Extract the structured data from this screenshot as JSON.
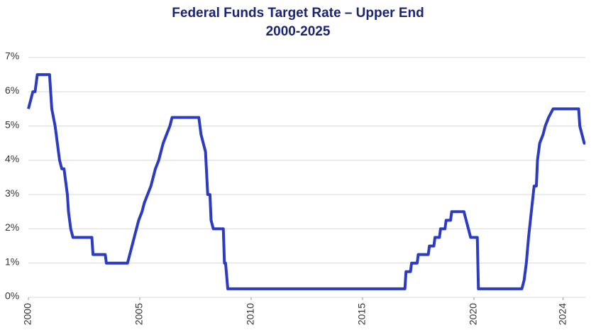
{
  "chart_data": {
    "type": "line",
    "title": "Federal Funds Target Rate – Upper End",
    "subtitle": "2000-2025",
    "x": [
      2000.0,
      2000.1,
      2000.2,
      2000.3,
      2000.4,
      2000.95,
      2001.05,
      2001.2,
      2001.3,
      2001.4,
      2001.5,
      2001.6,
      2001.65,
      2001.75,
      2001.8,
      2001.9,
      2002.0,
      2002.85,
      2002.9,
      2003.45,
      2003.5,
      2004.45,
      2004.55,
      2004.65,
      2004.75,
      2004.85,
      2004.95,
      2005.1,
      2005.2,
      2005.35,
      2005.5,
      2005.6,
      2005.7,
      2005.85,
      2005.95,
      2006.05,
      2006.2,
      2006.35,
      2006.45,
      2007.65,
      2007.75,
      2007.85,
      2007.95,
      2008.05,
      2008.15,
      2008.2,
      2008.3,
      2008.75,
      2008.8,
      2008.85,
      2008.95,
      2016.9,
      2016.95,
      2017.15,
      2017.2,
      2017.45,
      2017.5,
      2017.95,
      2018.0,
      2018.2,
      2018.25,
      2018.45,
      2018.5,
      2018.7,
      2018.75,
      2018.95,
      2019.0,
      2019.55,
      2019.65,
      2019.75,
      2019.85,
      2020.15,
      2020.2,
      2022.15,
      2022.25,
      2022.35,
      2022.45,
      2022.7,
      2022.8,
      2022.85,
      2022.95,
      2023.1,
      2023.2,
      2023.35,
      2023.55,
      2024.7,
      2024.75,
      2024.85,
      2024.95,
      2025.0
    ],
    "series": [
      {
        "name": "Federal Funds Target Rate – Upper End",
        "color": "#2b3bc4",
        "values": [
          5.5,
          5.75,
          6.0,
          6.0,
          6.5,
          6.5,
          5.5,
          5.0,
          4.5,
          4.0,
          3.75,
          3.75,
          3.5,
          3.0,
          2.5,
          2.0,
          1.75,
          1.75,
          1.25,
          1.25,
          1.0,
          1.0,
          1.25,
          1.5,
          1.75,
          2.0,
          2.25,
          2.5,
          2.75,
          3.0,
          3.25,
          3.5,
          3.75,
          4.0,
          4.25,
          4.5,
          4.75,
          5.0,
          5.25,
          5.25,
          4.75,
          4.5,
          4.25,
          3.0,
          3.0,
          2.25,
          2.0,
          2.0,
          1.0,
          1.0,
          0.25,
          0.25,
          0.75,
          0.75,
          1.0,
          1.0,
          1.25,
          1.25,
          1.5,
          1.5,
          1.75,
          1.75,
          2.0,
          2.0,
          2.25,
          2.25,
          2.5,
          2.5,
          2.25,
          2.0,
          1.75,
          1.75,
          0.25,
          0.25,
          0.5,
          1.0,
          1.75,
          3.25,
          3.25,
          4.0,
          4.5,
          4.75,
          5.0,
          5.25,
          5.5,
          5.5,
          5.0,
          4.75,
          4.5,
          4.5
        ]
      }
    ],
    "xlim": [
      2000,
      2025
    ],
    "xticks": [
      2000,
      2005,
      2010,
      2015,
      2020,
      2024
    ],
    "ylim": [
      0,
      7
    ],
    "yticks": [
      {
        "value": 0,
        "label": "0%"
      },
      {
        "value": 1,
        "label": "1%"
      },
      {
        "value": 2,
        "label": "2%"
      },
      {
        "value": 3,
        "label": "3%"
      },
      {
        "value": 4,
        "label": "4%"
      },
      {
        "value": 5,
        "label": "5%"
      },
      {
        "value": 6,
        "label": "6%"
      },
      {
        "value": 7,
        "label": "7%"
      }
    ],
    "grid": true
  }
}
